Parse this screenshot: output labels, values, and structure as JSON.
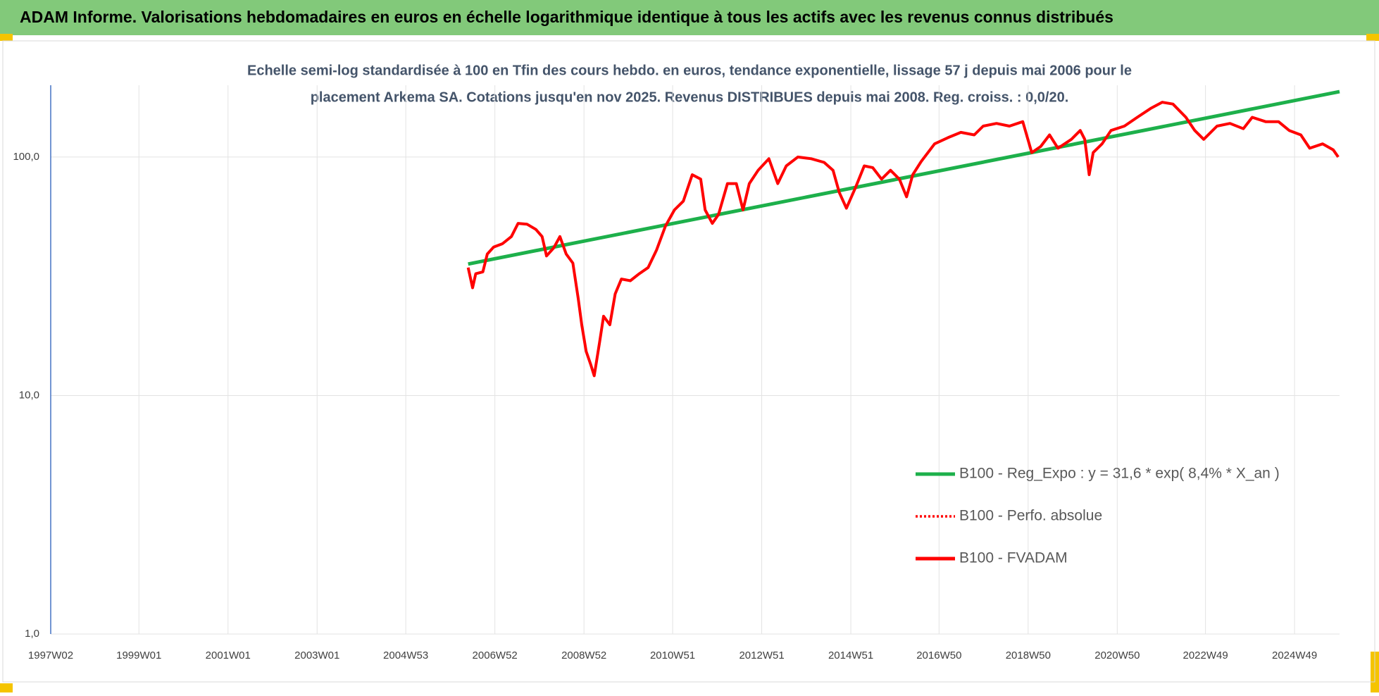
{
  "chart_data": {
    "type": "line",
    "title": "ADAM Informe. Valorisations hebdomadaires en euros en échelle logarithmique identique à tous les actifs avec les revenus connus distribués",
    "subtitle": [
      "Echelle semi-log standardisée à 100 en Tfin des cours hebdo. en euros, tendance exponentielle, lissage 57 j depuis mai 2006 pour le",
      "placement Arkema SA.  Cotations jusqu'en nov 2025. Revenus DISTRIBUES depuis mai 2008.  Reg. croiss. : 0,0/20."
    ],
    "log_scale": true,
    "grid": true,
    "legend": "right",
    "xlim": [
      1997.02,
      2025.95
    ],
    "xticks": [
      {
        "value": 1997.02,
        "label": "1997W02"
      },
      {
        "value": 1999.0,
        "label": "1999W01"
      },
      {
        "value": 2001.0,
        "label": "2001W01"
      },
      {
        "value": 2003.0,
        "label": "2003W01"
      },
      {
        "value": 2004.99,
        "label": "2004W53"
      },
      {
        "value": 2006.99,
        "label": "2006W52"
      },
      {
        "value": 2008.99,
        "label": "2008W52"
      },
      {
        "value": 2010.98,
        "label": "2010W51"
      },
      {
        "value": 2012.98,
        "label": "2012W51"
      },
      {
        "value": 2014.98,
        "label": "2014W51"
      },
      {
        "value": 2016.96,
        "label": "2016W50"
      },
      {
        "value": 2018.96,
        "label": "2018W50"
      },
      {
        "value": 2020.96,
        "label": "2020W50"
      },
      {
        "value": 2022.94,
        "label": "2022W49"
      },
      {
        "value": 2024.94,
        "label": "2024W49"
      }
    ],
    "ylim": [
      1,
      200
    ],
    "yticks": [
      {
        "value": 1,
        "label": "1,0"
      },
      {
        "value": 10,
        "label": "10,0"
      },
      {
        "value": 100,
        "label": "100,0"
      }
    ],
    "series": [
      {
        "name": "B100 - Reg_Expo : y = 31,6 * exp( 8,4% *  X_an )",
        "color": "#1db04b",
        "style": "solid",
        "x": [
          2006.39,
          2025.95
        ],
        "values": [
          35.6,
          188
        ]
      },
      {
        "name": "B100 - Perfo. absolue",
        "color": "#ff0000",
        "style": "dotted",
        "x": [],
        "values": []
      },
      {
        "name": "B100 - FVADAM",
        "color": "#ff0000",
        "style": "solid",
        "x": [
          2006.39,
          2006.49,
          2006.56,
          2006.72,
          2006.82,
          2006.96,
          2007.16,
          2007.36,
          2007.51,
          2007.71,
          2007.91,
          2008.05,
          2008.15,
          2008.31,
          2008.45,
          2008.59,
          2008.74,
          2008.86,
          2008.94,
          2009.04,
          2009.14,
          2009.22,
          2009.34,
          2009.43,
          2009.57,
          2009.69,
          2009.83,
          2010.03,
          2010.23,
          2010.43,
          2010.62,
          2010.82,
          2011.02,
          2011.22,
          2011.42,
          2011.61,
          2011.71,
          2011.87,
          2012.01,
          2012.21,
          2012.41,
          2012.56,
          2012.7,
          2012.9,
          2013.14,
          2013.34,
          2013.53,
          2013.79,
          2014.09,
          2014.38,
          2014.58,
          2014.72,
          2014.88,
          2015.08,
          2015.28,
          2015.47,
          2015.67,
          2015.87,
          2016.07,
          2016.23,
          2016.37,
          2016.56,
          2016.86,
          2017.16,
          2017.45,
          2017.75,
          2017.95,
          2018.25,
          2018.54,
          2018.84,
          2019.04,
          2019.24,
          2019.44,
          2019.63,
          2019.93,
          2020.13,
          2020.23,
          2020.33,
          2020.42,
          2020.62,
          2020.82,
          2021.12,
          2021.41,
          2021.71,
          2021.97,
          2022.21,
          2022.5,
          2022.7,
          2022.9,
          2023.2,
          2023.49,
          2023.79,
          2023.99,
          2024.29,
          2024.58,
          2024.82,
          2025.08,
          2025.28,
          2025.57,
          2025.81,
          2025.92
        ],
        "values": [
          34.4,
          28.3,
          32.4,
          33.0,
          39.2,
          41.9,
          43.3,
          46.4,
          52.7,
          52.3,
          49.7,
          46.4,
          38.5,
          41.6,
          46.4,
          39.2,
          35.9,
          25.5,
          19.8,
          15.3,
          13.5,
          12.1,
          16.7,
          21.5,
          19.8,
          26.7,
          30.8,
          30.3,
          32.4,
          34.4,
          40.8,
          51.4,
          60.0,
          65.3,
          84.3,
          80.8,
          60.0,
          52.7,
          57.4,
          77.4,
          77.4,
          60.0,
          77.4,
          88.0,
          98.4,
          77.4,
          91.8,
          100,
          98.4,
          95.0,
          88.0,
          71.1,
          61.0,
          74.1,
          91.8,
          90.3,
          80.8,
          88.0,
          80.8,
          68.1,
          84.3,
          95.8,
          113.6,
          120.6,
          126.9,
          123.8,
          134.8,
          138.3,
          134.8,
          140.7,
          104.4,
          110.7,
          123.8,
          108.9,
          118.6,
          129.2,
          118.6,
          84.3,
          104.4,
          113.6,
          129.2,
          134.8,
          146.8,
          159.9,
          169.8,
          166.8,
          146.8,
          129.2,
          118.6,
          134.8,
          138.3,
          131.5,
          146.8,
          140.7,
          140.7,
          129.2,
          123.8,
          108.9,
          113.6,
          107.1,
          100
        ]
      }
    ]
  }
}
